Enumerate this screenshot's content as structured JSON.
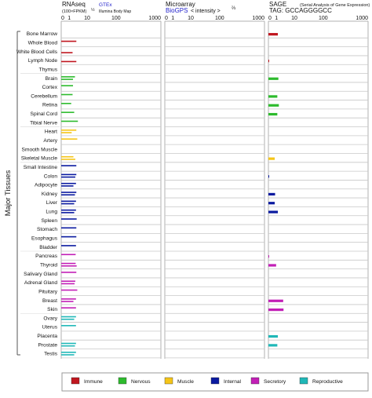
{
  "colors": {
    "Immune": "#c0161f",
    "Nervous": "#2dbb2d",
    "Muscle": "#f5c518",
    "Internal": "#0a1aa0",
    "Secretory": "#c21fb6",
    "Reproductive": "#20b8b8",
    "grid": "#b0b0b0",
    "rowline": "#c8c8c8",
    "link": "#2222cc"
  },
  "chart_data": {
    "type": "bar",
    "ylabel": "Major Tissues",
    "categories": [
      "Bone Marrow",
      "Whole Blood",
      "White Blood Cells",
      "Lymph Node",
      "Thymus",
      "Brain",
      "Cortex",
      "Cerebellum",
      "Retina",
      "Spinal Cord",
      "Tibial Nerve",
      "Heart",
      "Artery",
      "Smooth Muscle",
      "Skeletal Muscle",
      "Small Intestine",
      "Colon",
      "Adipocyte",
      "Kidney",
      "Liver",
      "Lung",
      "Spleen",
      "Stomach",
      "Esophagus",
      "Bladder",
      "Pancreas",
      "Thyroid",
      "Salivary Gland",
      "Adrenal Gland",
      "Pituitary",
      "Breast",
      "Skin",
      "Ovary",
      "Uterus",
      "Placenta",
      "Prostate",
      "Testis"
    ],
    "groups": [
      "Immune",
      "Immune",
      "Immune",
      "Immune",
      "Immune",
      "Nervous",
      "Nervous",
      "Nervous",
      "Nervous",
      "Nervous",
      "Nervous",
      "Muscle",
      "Muscle",
      "Muscle",
      "Muscle",
      "Internal",
      "Internal",
      "Internal",
      "Internal",
      "Internal",
      "Internal",
      "Internal",
      "Internal",
      "Internal",
      "Internal",
      "Secretory",
      "Secretory",
      "Secretory",
      "Secretory",
      "Secretory",
      "Secretory",
      "Secretory",
      "Reproductive",
      "Reproductive",
      "Reproductive",
      "Reproductive",
      "Reproductive"
    ],
    "panels": [
      {
        "title": "RNAseq",
        "subtitle": "(100×FPKM)",
        "subtitle_exp": "½",
        "link": "GTEx",
        "link_sub": "Illumina Body Map",
        "ticks": [
          "0",
          "1",
          "10",
          "100",
          "1000"
        ],
        "scale": "root2",
        "series": [
          {
            "name": "GTEx",
            "values": [
              null,
              23,
              null,
              null,
              null,
              19,
              14,
              13,
              10,
              17,
              28,
              23,
              26,
              null,
              15,
              23,
              23,
              22,
              23,
              22,
              22,
              24,
              23,
              23,
              22,
              21,
              21,
              23,
              20,
              26,
              22,
              22,
              22,
              22,
              null,
              22,
              22
            ]
          },
          {
            "name": "Illumina Body Map",
            "values": [
              null,
              null,
              13,
              23,
              null,
              14,
              null,
              null,
              null,
              null,
              null,
              11,
              null,
              null,
              20,
              null,
              20,
              15,
              19,
              17,
              17,
              null,
              null,
              null,
              null,
              null,
              24,
              null,
              18,
              null,
              15,
              null,
              17,
              null,
              null,
              19,
              17
            ]
          }
        ]
      },
      {
        "title": "Microarray",
        "link": "BioGPS",
        "label": "< intensity >",
        "label_exp": "⅔",
        "ticks": [
          "0",
          "1",
          "10",
          "100",
          "1000"
        ],
        "scale": "root3",
        "series": [
          {
            "name": "BioGPS",
            "values": [
              null,
              null,
              null,
              null,
              null,
              null,
              null,
              null,
              null,
              null,
              null,
              null,
              null,
              null,
              null,
              null,
              null,
              null,
              null,
              null,
              null,
              null,
              null,
              null,
              null,
              null,
              null,
              null,
              null,
              null,
              null,
              null,
              null,
              null,
              null,
              null,
              null
            ]
          }
        ]
      },
      {
        "title": "SAGE",
        "subtitle": "(Serial Analysis of Gene Expression)",
        "tag": "TAG: GCCAGGGGCC",
        "ticks": [
          "0",
          "1",
          "10",
          "100",
          "1000"
        ],
        "scale": "root2",
        "series": [
          {
            "name": "SAGE",
            "values": [
              9,
              null,
              null,
              0.03,
              null,
              10,
              null,
              8,
              11,
              8,
              null,
              null,
              null,
              null,
              4,
              null,
              0.03,
              null,
              4.5,
              4,
              9,
              null,
              null,
              null,
              null,
              0.03,
              6,
              null,
              null,
              null,
              22,
              23,
              null,
              null,
              9,
              8,
              null
            ]
          }
        ]
      }
    ],
    "legend": {
      "position": "bottom",
      "items": [
        "Immune",
        "Nervous",
        "Muscle",
        "Internal",
        "Secretory",
        "Reproductive"
      ]
    }
  }
}
